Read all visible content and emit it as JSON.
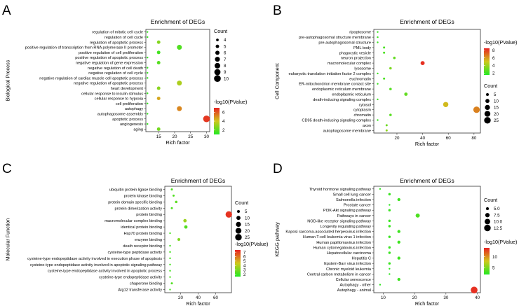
{
  "chart_data": [
    {
      "panel": "A",
      "type": "scatter",
      "title": "Enrichment of DEGs",
      "xlabel": "Rich factor",
      "ylabel": "Biological Process",
      "xlim": [
        11,
        31
      ],
      "xticks": [
        15,
        20,
        25,
        30
      ],
      "count_legend": {
        "title": "Count",
        "values": [
          4,
          5,
          6,
          7,
          8,
          9,
          10
        ],
        "range": [
          3,
          10
        ]
      },
      "pvalue_legend": {
        "title": "-log10(PValue)",
        "ticks": [
          6,
          4,
          2
        ],
        "range": [
          1,
          7
        ]
      },
      "color_low": "#22e822",
      "color_mid": "#cfc81c",
      "color_high": "#e82222",
      "categories": [
        "regulation of mitotic cell cycle",
        "regulation of cell cycle",
        "regulation of apoptotic process",
        "positive regulation of transcription from RNA polymerase II promoter",
        "positive regulation of cell proliferation",
        "positive regulation of apoptotic process",
        "negative regulation of gene expression",
        "negative regulation of cell death",
        "negative regulation of cell cycle",
        "negative regulation of cardiac muscle cell apoptotic process",
        "negative regulation of apoptotic process",
        "heart development",
        "cellular response to insulin stimulus",
        "cellular response to hypoxia",
        "cell proliferation",
        "autophagy",
        "autophagosome assembly",
        "apoptotic process",
        "angiogenesis",
        "aging"
      ],
      "points": [
        {
          "x": 11.5,
          "count": 3,
          "p": 1.3
        },
        {
          "x": 11.5,
          "count": 3,
          "p": 1.3
        },
        {
          "x": 15.0,
          "count": 5,
          "p": 2.7
        },
        {
          "x": 21.5,
          "count": 7,
          "p": 1.8
        },
        {
          "x": 15.0,
          "count": 5,
          "p": 1.6
        },
        {
          "x": 11.5,
          "count": 3,
          "p": 1.3
        },
        {
          "x": 15.0,
          "count": 5,
          "p": 1.9
        },
        {
          "x": 11.5,
          "count": 3,
          "p": 1.3
        },
        {
          "x": 11.5,
          "count": 3,
          "p": 1.3
        },
        {
          "x": 11.5,
          "count": 3,
          "p": 1.3
        },
        {
          "x": 21.5,
          "count": 7,
          "p": 3.4
        },
        {
          "x": 15.0,
          "count": 5,
          "p": 2.8
        },
        {
          "x": 11.5,
          "count": 3,
          "p": 1.3
        },
        {
          "x": 15.0,
          "count": 5,
          "p": 4.6
        },
        {
          "x": 11.5,
          "count": 3,
          "p": 1.3
        },
        {
          "x": 21.5,
          "count": 7,
          "p": 5.2
        },
        {
          "x": 11.5,
          "count": 3,
          "p": 1.3
        },
        {
          "x": 30.0,
          "count": 10,
          "p": 6.6
        },
        {
          "x": 11.5,
          "count": 3,
          "p": 1.3
        },
        {
          "x": 15.0,
          "count": 5,
          "p": 2.4
        }
      ]
    },
    {
      "panel": "B",
      "type": "scatter",
      "title": "Enrichment of DEGs",
      "xlabel": "Rich factor",
      "ylabel": "Cell Component",
      "xlim": [
        2,
        85
      ],
      "xticks": [
        20,
        40,
        60,
        80
      ],
      "count_legend": {
        "title": "Count",
        "values": [
          5,
          10,
          15,
          20,
          25
        ],
        "range": [
          2,
          26
        ]
      },
      "pvalue_legend": {
        "title": "-log10(PValue)",
        "ticks": [
          8,
          6,
          4,
          2
        ],
        "range": [
          1.5,
          8.5
        ]
      },
      "color_low": "#22e822",
      "color_mid": "#cfc81c",
      "color_high": "#e82222",
      "categories": [
        "ripoptosome",
        "pre-autophagosomal structure membrane",
        "pre-autophagosomal structure",
        "PML body",
        "phagocytic vesicle",
        "neuron projection",
        "macromolecular complex",
        "lysosome",
        "eukaryotic translation initiation factor 2 complex",
        "euchromatin",
        "ER-mitochondrion membrane contact site",
        "endoplasmic reticulum membrane",
        "endoplasmic reticulum",
        "death-inducing signaling complex",
        "cytosol",
        "cytoplasm",
        "chromatin",
        "CD95 death-inducing signaling complex",
        "axon",
        "autophagosome membrane"
      ],
      "points": [
        {
          "x": 5,
          "count": 2,
          "p": 2.0
        },
        {
          "x": 5,
          "count": 2,
          "p": 2.0
        },
        {
          "x": 5,
          "count": 2,
          "p": 2.0
        },
        {
          "x": 10,
          "count": 3,
          "p": 2.3
        },
        {
          "x": 10,
          "count": 3,
          "p": 2.3
        },
        {
          "x": 18,
          "count": 4,
          "p": 2.8
        },
        {
          "x": 40,
          "count": 10,
          "p": 8.2
        },
        {
          "x": 15,
          "count": 4,
          "p": 3.3
        },
        {
          "x": 5,
          "count": 2,
          "p": 2.0
        },
        {
          "x": 10,
          "count": 3,
          "p": 2.3
        },
        {
          "x": 5,
          "count": 2,
          "p": 2.0
        },
        {
          "x": 15,
          "count": 4,
          "p": 2.5
        },
        {
          "x": 27,
          "count": 7,
          "p": 2.8
        },
        {
          "x": 5,
          "count": 2,
          "p": 2.0
        },
        {
          "x": 58,
          "count": 16,
          "p": 5.3
        },
        {
          "x": 82,
          "count": 24,
          "p": 6.5
        },
        {
          "x": 15,
          "count": 4,
          "p": 2.6
        },
        {
          "x": 5,
          "count": 2,
          "p": 2.0
        },
        {
          "x": 12,
          "count": 3,
          "p": 3.0
        },
        {
          "x": 12,
          "count": 3,
          "p": 3.7
        }
      ]
    },
    {
      "panel": "C",
      "type": "scatter",
      "title": "Enrichment of DEGs",
      "xlabel": "Rich factor",
      "ylabel": "Molecular Function",
      "xlim": [
        2,
        78
      ],
      "xticks": [
        20,
        40,
        60
      ],
      "count_legend": {
        "title": "Count",
        "values": [
          5,
          10,
          15,
          20,
          25
        ],
        "range": [
          2,
          26
        ]
      },
      "pvalue_legend": {
        "title": "-log10(PValue)",
        "ticks": [
          7,
          6,
          5,
          4,
          3,
          2
        ],
        "range": [
          1.5,
          7.5
        ]
      },
      "color_low": "#22e822",
      "color_mid": "#cfc81c",
      "color_high": "#e82222",
      "categories": [
        "ubiquitin protein ligase binding",
        "protein kinase binding",
        "protein domain specific binding",
        "protein dimerization activity",
        "protein binding",
        "macromolecular complex binding",
        "identical protein binding",
        "Hsp70 protein binding",
        "enzyme binding",
        "death receptor binding",
        "cysteine-type peptidase activity",
        "cysteine-type endopeptidase activity involved in execution phase of apoptosis",
        "cysteine-type endopeptidase activity involved in apoptotic signaling pathway",
        "cysteine-type endopeptidase activity involved in apoptotic process",
        "cysteine-type endopeptidase activity",
        "chaperone binding",
        "Atg12 transferase activity"
      ],
      "points": [
        {
          "x": 10,
          "count": 3,
          "p": 2.3
        },
        {
          "x": 12,
          "count": 3,
          "p": 2.3
        },
        {
          "x": 15,
          "count": 4,
          "p": 2.5
        },
        {
          "x": 10,
          "count": 3,
          "p": 2.3
        },
        {
          "x": 75,
          "count": 24,
          "p": 7.2
        },
        {
          "x": 25,
          "count": 7,
          "p": 3.6
        },
        {
          "x": 26,
          "count": 7,
          "p": 2.3
        },
        {
          "x": 8,
          "count": 2,
          "p": 2.1
        },
        {
          "x": 18,
          "count": 5,
          "p": 3.1
        },
        {
          "x": 8,
          "count": 2,
          "p": 2.1
        },
        {
          "x": 8,
          "count": 2,
          "p": 2.1
        },
        {
          "x": 8,
          "count": 2,
          "p": 2.1
        },
        {
          "x": 8,
          "count": 2,
          "p": 2.1
        },
        {
          "x": 8,
          "count": 2,
          "p": 2.1
        },
        {
          "x": 8,
          "count": 2,
          "p": 2.3
        },
        {
          "x": 10,
          "count": 3,
          "p": 2.3
        },
        {
          "x": 8,
          "count": 2,
          "p": 2.1
        }
      ]
    },
    {
      "panel": "D",
      "type": "scatter",
      "title": "Enrichment of DEGs",
      "xlabel": "Rich factor",
      "ylabel": "KEGG pathway",
      "xlim": [
        7,
        41
      ],
      "xticks": [
        10,
        20,
        30,
        40
      ],
      "count_legend": {
        "title": "Count",
        "values": [
          5.0,
          7.5,
          10.0,
          12.5
        ],
        "range": [
          3,
          13
        ]
      },
      "count_labels": [
        "5.0",
        "7.5",
        "10.0",
        "12.5"
      ],
      "pvalue_legend": {
        "title": "-log10(PValue)",
        "ticks": [
          10,
          5
        ],
        "range": [
          2,
          14
        ]
      },
      "color_low": "#22e822",
      "color_mid": "#cfc81c",
      "color_high": "#e82222",
      "categories": [
        "Thyroid hormone signaling pathway",
        "Small cell lung cancer",
        "Salmonella infection",
        "Prostate cancer",
        "PI3K-Akt signaling pathway",
        "Pathways in cancer",
        "NOD-like receptor signaling pathway",
        "Longevity regulating pathway",
        "Kaposi sarcoma-associated herpesvirus infection",
        "Human T-cell leukemia virus 1 infection",
        "Human papillomavirus infection",
        "Human cytomegalovirus infection",
        "Hepatocellular carcinoma",
        "Hepatitis C",
        "Epstein-Barr virus infection",
        "Chronic myeloid leukemia",
        "Central carbon metabolism in cancer",
        "Cellular senescence",
        "Autophagy - other",
        "Autophagy - animal"
      ],
      "points": [
        {
          "x": 9,
          "count": 3,
          "p": 2.5
        },
        {
          "x": 12,
          "count": 4,
          "p": 2.8
        },
        {
          "x": 15,
          "count": 5,
          "p": 3.0
        },
        {
          "x": 12,
          "count": 3,
          "p": 2.5
        },
        {
          "x": 12,
          "count": 4,
          "p": 2.8
        },
        {
          "x": 21,
          "count": 7,
          "p": 3.5
        },
        {
          "x": 12,
          "count": 4,
          "p": 2.8
        },
        {
          "x": 12,
          "count": 4,
          "p": 2.8
        },
        {
          "x": 15,
          "count": 5,
          "p": 3.0
        },
        {
          "x": 12,
          "count": 4,
          "p": 2.8
        },
        {
          "x": 15,
          "count": 5,
          "p": 3.0
        },
        {
          "x": 12,
          "count": 4,
          "p": 2.8
        },
        {
          "x": 12,
          "count": 4,
          "p": 2.8
        },
        {
          "x": 15,
          "count": 5,
          "p": 3.0
        },
        {
          "x": 12,
          "count": 4,
          "p": 2.8
        },
        {
          "x": 12,
          "count": 3,
          "p": 2.5
        },
        {
          "x": 12,
          "count": 3,
          "p": 2.5
        },
        {
          "x": 15,
          "count": 5,
          "p": 3.0
        },
        {
          "x": 9,
          "count": 3,
          "p": 2.5
        },
        {
          "x": 39,
          "count": 13,
          "p": 13.5
        }
      ]
    }
  ]
}
